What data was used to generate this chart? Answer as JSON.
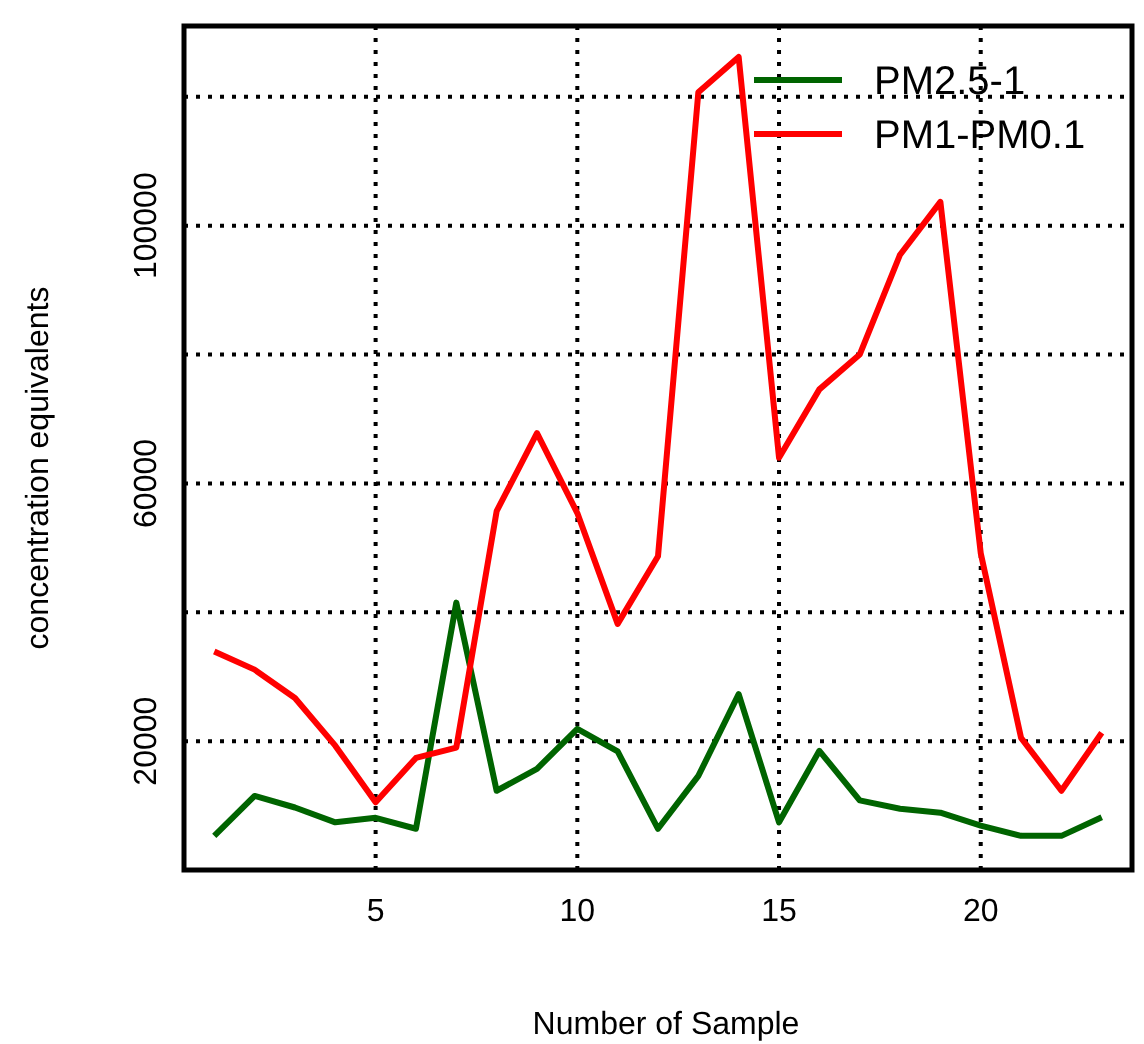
{
  "chart_data": {
    "type": "line",
    "xlabel": "Number of Sample",
    "ylabel": "concentration equivalents",
    "x": [
      1,
      2,
      3,
      4,
      5,
      6,
      7,
      8,
      9,
      10,
      11,
      12,
      13,
      14,
      15,
      16,
      17,
      18,
      19,
      20,
      21,
      22,
      23
    ],
    "series": [
      {
        "name": "PM2.5-1",
        "color": "#006400",
        "values": [
          5300,
          11500,
          9700,
          7400,
          8100,
          6400,
          41500,
          12300,
          15700,
          21900,
          18400,
          6400,
          14600,
          27300,
          7400,
          18500,
          10800,
          9500,
          8900,
          6900,
          5300,
          5300,
          8200
        ]
      },
      {
        "name": "PM1-PM0.1",
        "color": "#ff0000",
        "values": [
          33900,
          31100,
          26700,
          19300,
          10500,
          17400,
          19000,
          55700,
          67800,
          55400,
          38200,
          48700,
          120700,
          126200,
          64000,
          74600,
          80000,
          95500,
          103700,
          49200,
          20500,
          12300,
          21300
        ]
      }
    ],
    "xlim": [
      0.25,
      23.75
    ],
    "xticks": [
      5,
      10,
      15,
      20
    ],
    "ylim": [
      0,
      131000
    ],
    "yticks": [
      20000,
      {
        "value": 40000,
        "label": null
      },
      60000,
      {
        "value": 80000,
        "label": null
      },
      100000,
      {
        "value": 120000,
        "label": null
      }
    ],
    "grid": true,
    "legend": "top right",
    "line_style": "solid",
    "marker": "none"
  }
}
